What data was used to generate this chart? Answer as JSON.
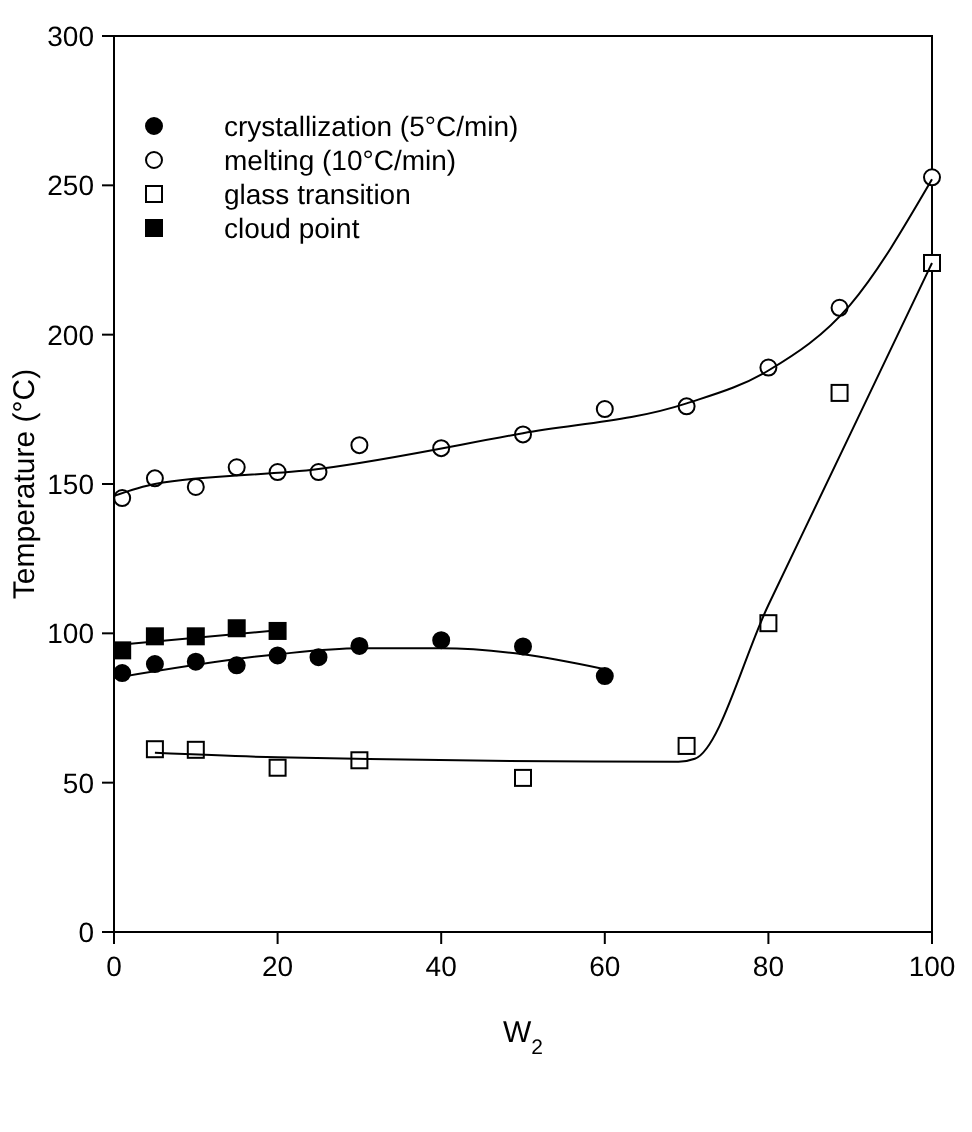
{
  "chart_data": {
    "type": "scatter",
    "xlabel": "W$_{2}$",
    "ylabel": "Temperature (°C)",
    "xlim": [
      0,
      100
    ],
    "ylim": [
      0,
      300
    ],
    "xticks": [
      0,
      20,
      40,
      60,
      80,
      100
    ],
    "yticks": [
      0,
      50,
      100,
      150,
      200,
      250,
      300
    ],
    "grid": false,
    "legend": "top left",
    "series": [
      {
        "name": "crystallization (5°C/min)",
        "color": "#000000",
        "marker": "circle",
        "x": [
          1,
          5,
          10,
          15,
          20,
          25,
          30,
          40,
          50,
          60
        ],
        "values": [
          86.7,
          89.7,
          90.5,
          89.3,
          92.6,
          92,
          95.8,
          97.7,
          95.6,
          85.7
        ]
      },
      {
        "name": "melting (10°C/min)",
        "color": "#ffffff",
        "marker": "circle",
        "x": [
          1,
          5,
          10,
          15,
          20,
          25,
          30,
          40,
          50,
          60,
          70,
          80,
          88.7,
          100
        ],
        "values": [
          145.3,
          151.9,
          149,
          155.6,
          154,
          154,
          163,
          162,
          166.6,
          175.1,
          176,
          189,
          209,
          252.7
        ]
      },
      {
        "name": "glass transition",
        "color": "#ffffff",
        "marker": "square",
        "x": [
          5,
          10,
          20,
          30,
          50,
          70,
          80,
          88.7,
          100
        ],
        "values": [
          61.2,
          61,
          55,
          57.5,
          51.6,
          62.3,
          103.4,
          180.5,
          224
        ]
      },
      {
        "name": "cloud point",
        "color": "#000000",
        "marker": "square",
        "x": [
          1,
          5,
          10,
          15,
          20
        ],
        "values": [
          94.3,
          99,
          99,
          101.7,
          100.8
        ]
      },
      {
        "type": "line",
        "color": "#000000",
        "marker": "none",
        "x": [
          0,
          5,
          25,
          50,
          70,
          80,
          90,
          100
        ],
        "values": [
          146,
          150,
          155,
          167,
          177,
          188,
          210,
          252
        ]
      },
      {
        "type": "line",
        "color": "#000000",
        "marker": "none",
        "x": [
          0,
          20,
          30,
          40,
          50,
          60
        ],
        "values": [
          85,
          93,
          95,
          95,
          93,
          88
        ]
      },
      {
        "type": "line",
        "color": "#000000",
        "marker": "none",
        "x": [
          0,
          20
        ],
        "values": [
          96,
          101
        ]
      },
      {
        "type": "line",
        "color": "#000000",
        "marker": "none",
        "x": [
          5,
          20,
          69,
          71,
          80,
          90,
          100
        ],
        "values": [
          60,
          58.5,
          57,
          58,
          109.5,
          166.7,
          224
        ]
      }
    ]
  }
}
